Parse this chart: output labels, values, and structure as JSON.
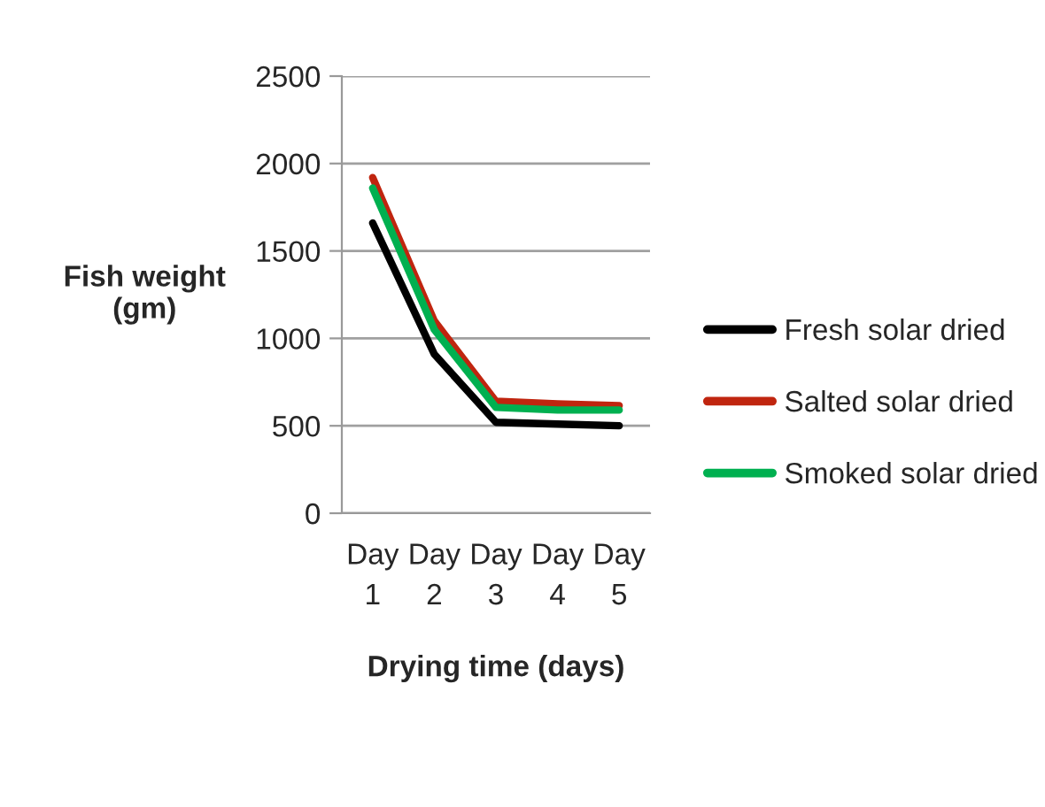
{
  "chart_data": {
    "type": "line",
    "xlabel": "Drying time (days)",
    "ylabel": "Fish weight\n(gm)",
    "categories": [
      "Day\n1",
      "Day\n2",
      "Day\n3",
      "Day\n4",
      "Day\n5"
    ],
    "series": [
      {
        "name": "Fresh solar dried",
        "color": "#000000",
        "values": [
          1660,
          910,
          520,
          510,
          500
        ]
      },
      {
        "name": "Salted solar dried",
        "color": "#c0250f",
        "values": [
          1920,
          1100,
          640,
          625,
          615
        ]
      },
      {
        "name": "Smoked solar dried",
        "color": "#00b050",
        "values": [
          1860,
          1050,
          605,
          590,
          590
        ]
      }
    ],
    "ylim": [
      0,
      2500
    ],
    "yticks": [
      0,
      500,
      1000,
      1500,
      2000,
      2500
    ],
    "grid": "y",
    "legend": "right",
    "marker": "none",
    "line_style": "solid"
  }
}
